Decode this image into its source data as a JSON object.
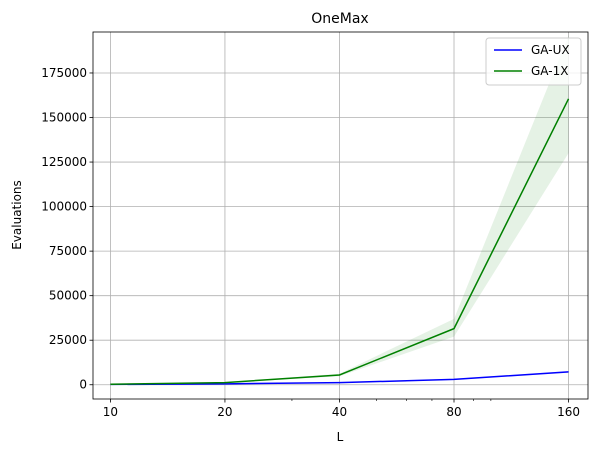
{
  "chart_data": {
    "type": "line",
    "title": "OneMax",
    "xlabel": "L",
    "ylabel": "Evaluations",
    "x_scale": "log2",
    "x": [
      10,
      20,
      40,
      80,
      160
    ],
    "x_ticks": [
      "10",
      "20",
      "40",
      "80",
      "160"
    ],
    "xlim": [
      9,
      180
    ],
    "ylim": [
      -8000,
      198000
    ],
    "y_ticks": [
      0,
      25000,
      50000,
      75000,
      100000,
      125000,
      150000,
      175000
    ],
    "y_tick_labels": [
      "0",
      "25000",
      "50000",
      "75000",
      "100000",
      "125000",
      "150000",
      "175000"
    ],
    "grid": true,
    "legend_position": "top-right",
    "series": [
      {
        "name": "GA-UX",
        "color": "#0000ff",
        "values": [
          200,
          500,
          1200,
          3000,
          7200
        ],
        "lower": [
          150,
          400,
          1000,
          2700,
          6700
        ],
        "upper": [
          250,
          600,
          1400,
          3300,
          7700
        ]
      },
      {
        "name": "GA-1X",
        "color": "#008000",
        "values": [
          300,
          1200,
          5500,
          31500,
          160500
        ],
        "lower": [
          250,
          1000,
          4800,
          27000,
          130000
        ],
        "upper": [
          350,
          1400,
          6200,
          37000,
          196000
        ]
      }
    ]
  }
}
